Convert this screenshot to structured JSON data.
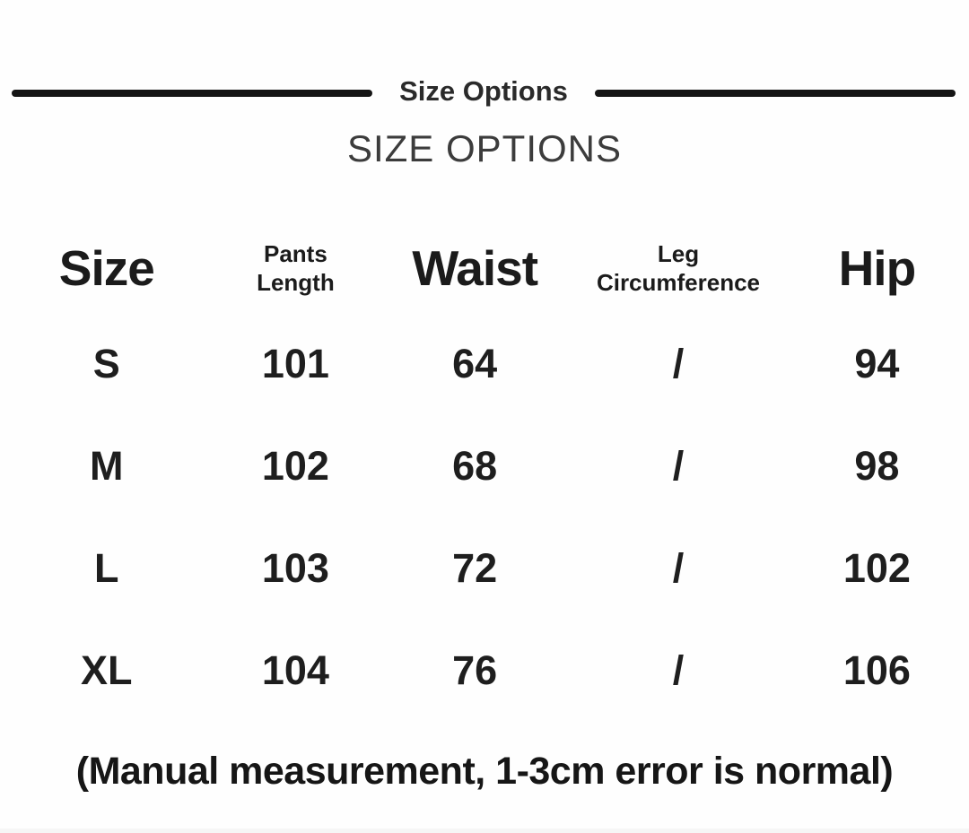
{
  "header": {
    "title": "Size Options",
    "subtitle": "SIZE OPTIONS"
  },
  "table": {
    "col_labels": {
      "size": "Size",
      "pants_length": "Pants\nLength",
      "waist": "Waist",
      "leg_circumference": "Leg\nCircumference",
      "hip": "Hip"
    },
    "rows": [
      {
        "size": "S",
        "pants_length": "101",
        "waist": "64",
        "leg_circumference": "/",
        "hip": "94"
      },
      {
        "size": "M",
        "pants_length": "102",
        "waist": "68",
        "leg_circumference": "/",
        "hip": "98"
      },
      {
        "size": "L",
        "pants_length": "103",
        "waist": "72",
        "leg_circumference": "/",
        "hip": "102"
      },
      {
        "size": "XL",
        "pants_length": "104",
        "waist": "76",
        "leg_circumference": "/",
        "hip": "106"
      }
    ]
  },
  "footnote": {
    "text": "(Manual measurement, 1-3cm error is normal)"
  },
  "colors": {
    "text": "#1d1d1d",
    "rule": "#151515",
    "subtitle_text": "#3c3c3c",
    "background": "#fefefe"
  },
  "chart_data": {
    "type": "table",
    "title": "Size Options",
    "subtitle": "SIZE OPTIONS",
    "columns": [
      "Size",
      "Pants Length",
      "Waist",
      "Leg Circumference",
      "Hip"
    ],
    "rows": [
      [
        "S",
        101,
        64,
        "/",
        94
      ],
      [
        "M",
        102,
        68,
        "/",
        98
      ],
      [
        "L",
        103,
        72,
        "/",
        102
      ],
      [
        "XL",
        104,
        76,
        "/",
        106
      ]
    ],
    "units": "cm",
    "footnote": "(Manual measurement, 1-3cm error is normal)"
  }
}
